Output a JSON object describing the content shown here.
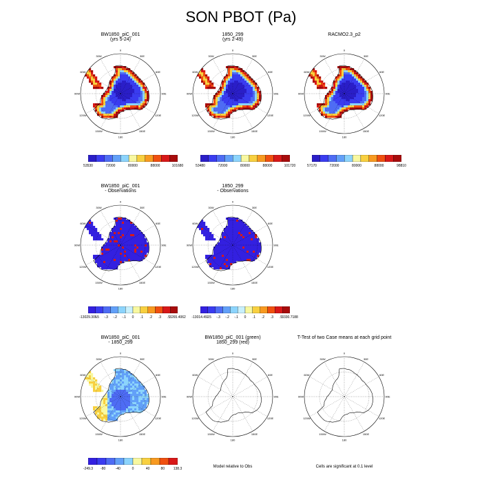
{
  "title": "SON PBOT (Pa)",
  "lon_labels": [
    "0",
    "30E",
    "60E",
    "90E",
    "120E",
    "150E",
    "180",
    "150W",
    "120W",
    "90W",
    "60W",
    "30W"
  ],
  "panels": [
    {
      "id": "p1",
      "title": "BW1850_piC_001",
      "subtitle": "(yrs 5-24)",
      "field": "full",
      "labels": [
        "53530",
        "72000",
        "80000",
        "88000",
        "101680"
      ]
    },
    {
      "id": "p2",
      "title": "1850_299",
      "subtitle": "(yrs 2-49)",
      "field": "full",
      "labels": [
        "53480",
        "72000",
        "80000",
        "88000",
        "101720"
      ]
    },
    {
      "id": "p3",
      "title": "RACMO2.3_p2",
      "subtitle": "",
      "field": "full",
      "labels": [
        "57170",
        "72000",
        "80000",
        "88000",
        "98810"
      ]
    },
    {
      "id": "p4",
      "title": "BW1850_piC_001",
      "subtitle": "- Observations",
      "field": "diff",
      "labels": [
        "-13029.305",
        "-.5",
        "-.3",
        "-.2",
        "-.1",
        "0",
        ".1",
        ".2",
        ".3",
        ".5",
        "3265.4062"
      ]
    },
    {
      "id": "p5",
      "title": "1850_299",
      "subtitle": "- Observations",
      "field": "diff",
      "labels": [
        "-13014.492",
        "-.5",
        "-.3",
        "-.2",
        "-.1",
        "0",
        ".1",
        ".2",
        ".3",
        ".5",
        "3330.7188"
      ]
    },
    {
      "id": "p6",
      "title": "BW1850_piC_001",
      "subtitle": "- 1850_299",
      "field": "case",
      "labels": [
        "-249.3",
        "-80",
        "-40",
        "0",
        "40",
        "80",
        "138.3"
      ]
    },
    {
      "id": "p7",
      "title": "BW1850_piC_001 (green)",
      "subtitle": "1850_299 (red)",
      "field": "outline",
      "note": "Model relative to Obs"
    },
    {
      "id": "p8",
      "title": "T-Test of two Case means at each grid point",
      "subtitle": "",
      "field": "outline",
      "note": "Cells are significant at 0.1 level"
    }
  ],
  "chart_data": {
    "type": "heatmap",
    "title": "SON PBOT (Pa)",
    "projection": "polar stereographic, Antarctica",
    "panels": [
      {
        "name": "BW1850_piC_001 (yrs 5-24)",
        "min": 53530,
        "max": 101680,
        "levels": [
          53530,
          72000,
          80000,
          88000,
          101680
        ]
      },
      {
        "name": "1850_299 (yrs 2-49)",
        "min": 53480,
        "max": 101720,
        "levels": [
          53480,
          72000,
          80000,
          88000,
          101720
        ]
      },
      {
        "name": "RACMO2.3_p2",
        "min": 57170,
        "max": 98810,
        "levels": [
          57170,
          72000,
          80000,
          88000,
          98810
        ]
      },
      {
        "name": "BW1850_piC_001 - Observations",
        "min": -13029.305,
        "max": 3265.4062,
        "levels": [
          -0.5,
          -0.3,
          -0.2,
          -0.1,
          0,
          0.1,
          0.2,
          0.3,
          0.5
        ]
      },
      {
        "name": "1850_299 - Observations",
        "min": -13014.492,
        "max": 3330.7188,
        "levels": [
          -0.5,
          -0.3,
          -0.2,
          -0.1,
          0,
          0.1,
          0.2,
          0.3,
          0.5
        ]
      },
      {
        "name": "BW1850_piC_001 - 1850_299",
        "min": -249.3,
        "max": 138.3,
        "levels": [
          -80,
          -40,
          0,
          40,
          80
        ]
      }
    ],
    "colors": {
      "full": [
        "#2a1ec8",
        "#3a3cf0",
        "#4e6cf4",
        "#62a0f8",
        "#8cd4fc",
        "#f8f8a0",
        "#f8d040",
        "#f89a20",
        "#f05010",
        "#d81818",
        "#a80c0c"
      ],
      "diff": [
        "#3320e0",
        "#3a3cf0",
        "#4e6cf4",
        "#62a0f8",
        "#8cd4fc",
        "#c8f0fc",
        "#f8f8a0",
        "#f8d040",
        "#f89a20",
        "#f05010",
        "#d81818",
        "#a80c0c"
      ],
      "case": [
        "#3320e0",
        "#3a3cf0",
        "#4e6cf4",
        "#62a0f8",
        "#8cd4fc",
        "#f8f8a0",
        "#f8d040",
        "#f89a20",
        "#f05010",
        "#d81818"
      ]
    }
  }
}
